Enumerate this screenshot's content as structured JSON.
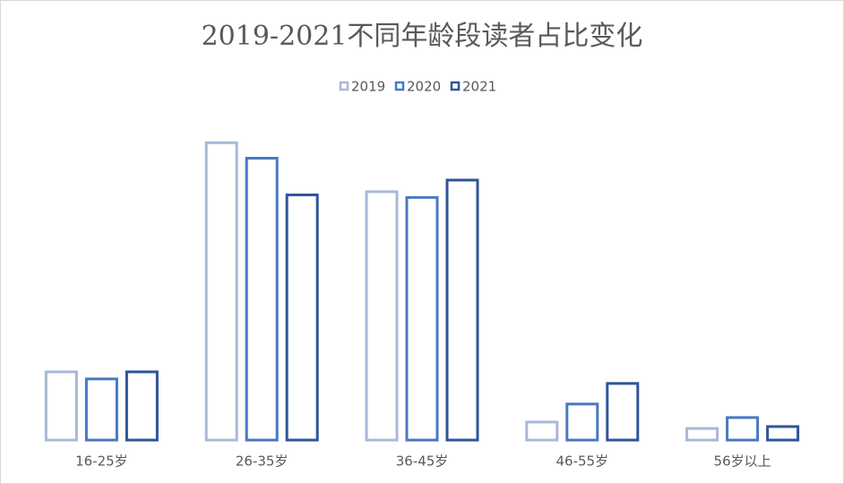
{
  "chart_data": {
    "type": "bar",
    "title": "2019-2021不同年龄段读者占比变化",
    "categories": [
      "16-25岁",
      "26-35岁",
      "36-45岁",
      "46-55岁",
      "56岁以上"
    ],
    "series": [
      {
        "name": "2019",
        "color": "#a9b8d9",
        "values": [
          10.6,
          46.2,
          38.6,
          2.8,
          1.8
        ]
      },
      {
        "name": "2020",
        "color": "#4a78c2",
        "values": [
          9.5,
          43.8,
          37.7,
          5.6,
          3.5
        ]
      },
      {
        "name": "2021",
        "color": "#2f5597",
        "values": [
          10.6,
          38.1,
          40.4,
          8.8,
          2.1
        ]
      }
    ],
    "legend": "top"
  }
}
